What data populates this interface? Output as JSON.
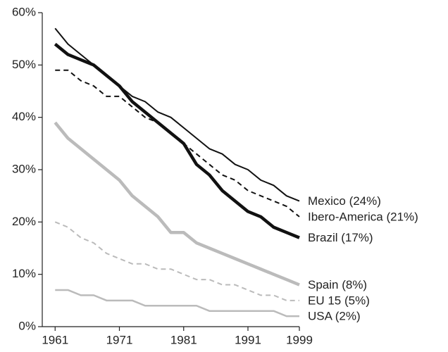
{
  "chart_data": {
    "type": "line",
    "x": [
      1961,
      1963,
      1965,
      1967,
      1969,
      1971,
      1973,
      1975,
      1977,
      1979,
      1981,
      1983,
      1985,
      1987,
      1989,
      1991,
      1993,
      1995,
      1997,
      1999
    ],
    "xlim": [
      1959,
      1999
    ],
    "xticks": [
      1961,
      1971,
      1981,
      1991,
      1999
    ],
    "ylim": [
      0,
      60
    ],
    "yticks": [
      {
        "value": 0,
        "label": "0%"
      },
      {
        "value": 10,
        "label": "10%"
      },
      {
        "value": 20,
        "label": "20%"
      },
      {
        "value": 30,
        "label": "30%"
      },
      {
        "value": 40,
        "label": "40%"
      },
      {
        "value": 50,
        "label": "50%"
      },
      {
        "value": 60,
        "label": "60%"
      }
    ],
    "series": [
      {
        "name": "Mexico (24%)",
        "color": "#111111",
        "linestyle": "solid",
        "values": [
          57,
          54,
          52,
          50,
          48,
          46,
          44,
          43,
          41,
          40,
          38,
          36,
          34,
          33,
          31,
          30,
          28,
          27,
          25,
          24
        ]
      },
      {
        "name": "Ibero-America (21%)",
        "color": "#111111",
        "linestyle": "dashed",
        "values": [
          49,
          49,
          47,
          46,
          44,
          44,
          42,
          40,
          39,
          37,
          35,
          33,
          31,
          29,
          28,
          26,
          25,
          24,
          23,
          21
        ]
      },
      {
        "name": "Brazil (17%)",
        "color": "#111111",
        "linestyle": "solid",
        "values": [
          54,
          52,
          51,
          50,
          48,
          46,
          43,
          41,
          39,
          37,
          35,
          31,
          29,
          26,
          24,
          22,
          21,
          19,
          18,
          17
        ]
      },
      {
        "name": "Spain (8%)",
        "color": "#bbbbbb",
        "linestyle": "solid",
        "values": [
          39,
          36,
          34,
          32,
          30,
          28,
          25,
          23,
          21,
          18,
          18,
          16,
          15,
          14,
          13,
          12,
          11,
          10,
          9,
          8
        ]
      },
      {
        "name": "EU 15 (5%)",
        "color": "#bbbbbb",
        "linestyle": "dashed",
        "values": [
          20,
          19,
          17,
          16,
          14,
          13,
          12,
          12,
          11,
          11,
          10,
          9,
          9,
          8,
          8,
          7,
          6,
          6,
          5,
          5
        ]
      },
      {
        "name": "USA (2%)",
        "color": "#bbbbbb",
        "linestyle": "solid",
        "values": [
          7,
          7,
          6,
          6,
          5,
          5,
          5,
          4,
          4,
          4,
          4,
          4,
          3,
          3,
          3,
          3,
          3,
          3,
          2,
          2
        ]
      }
    ]
  }
}
